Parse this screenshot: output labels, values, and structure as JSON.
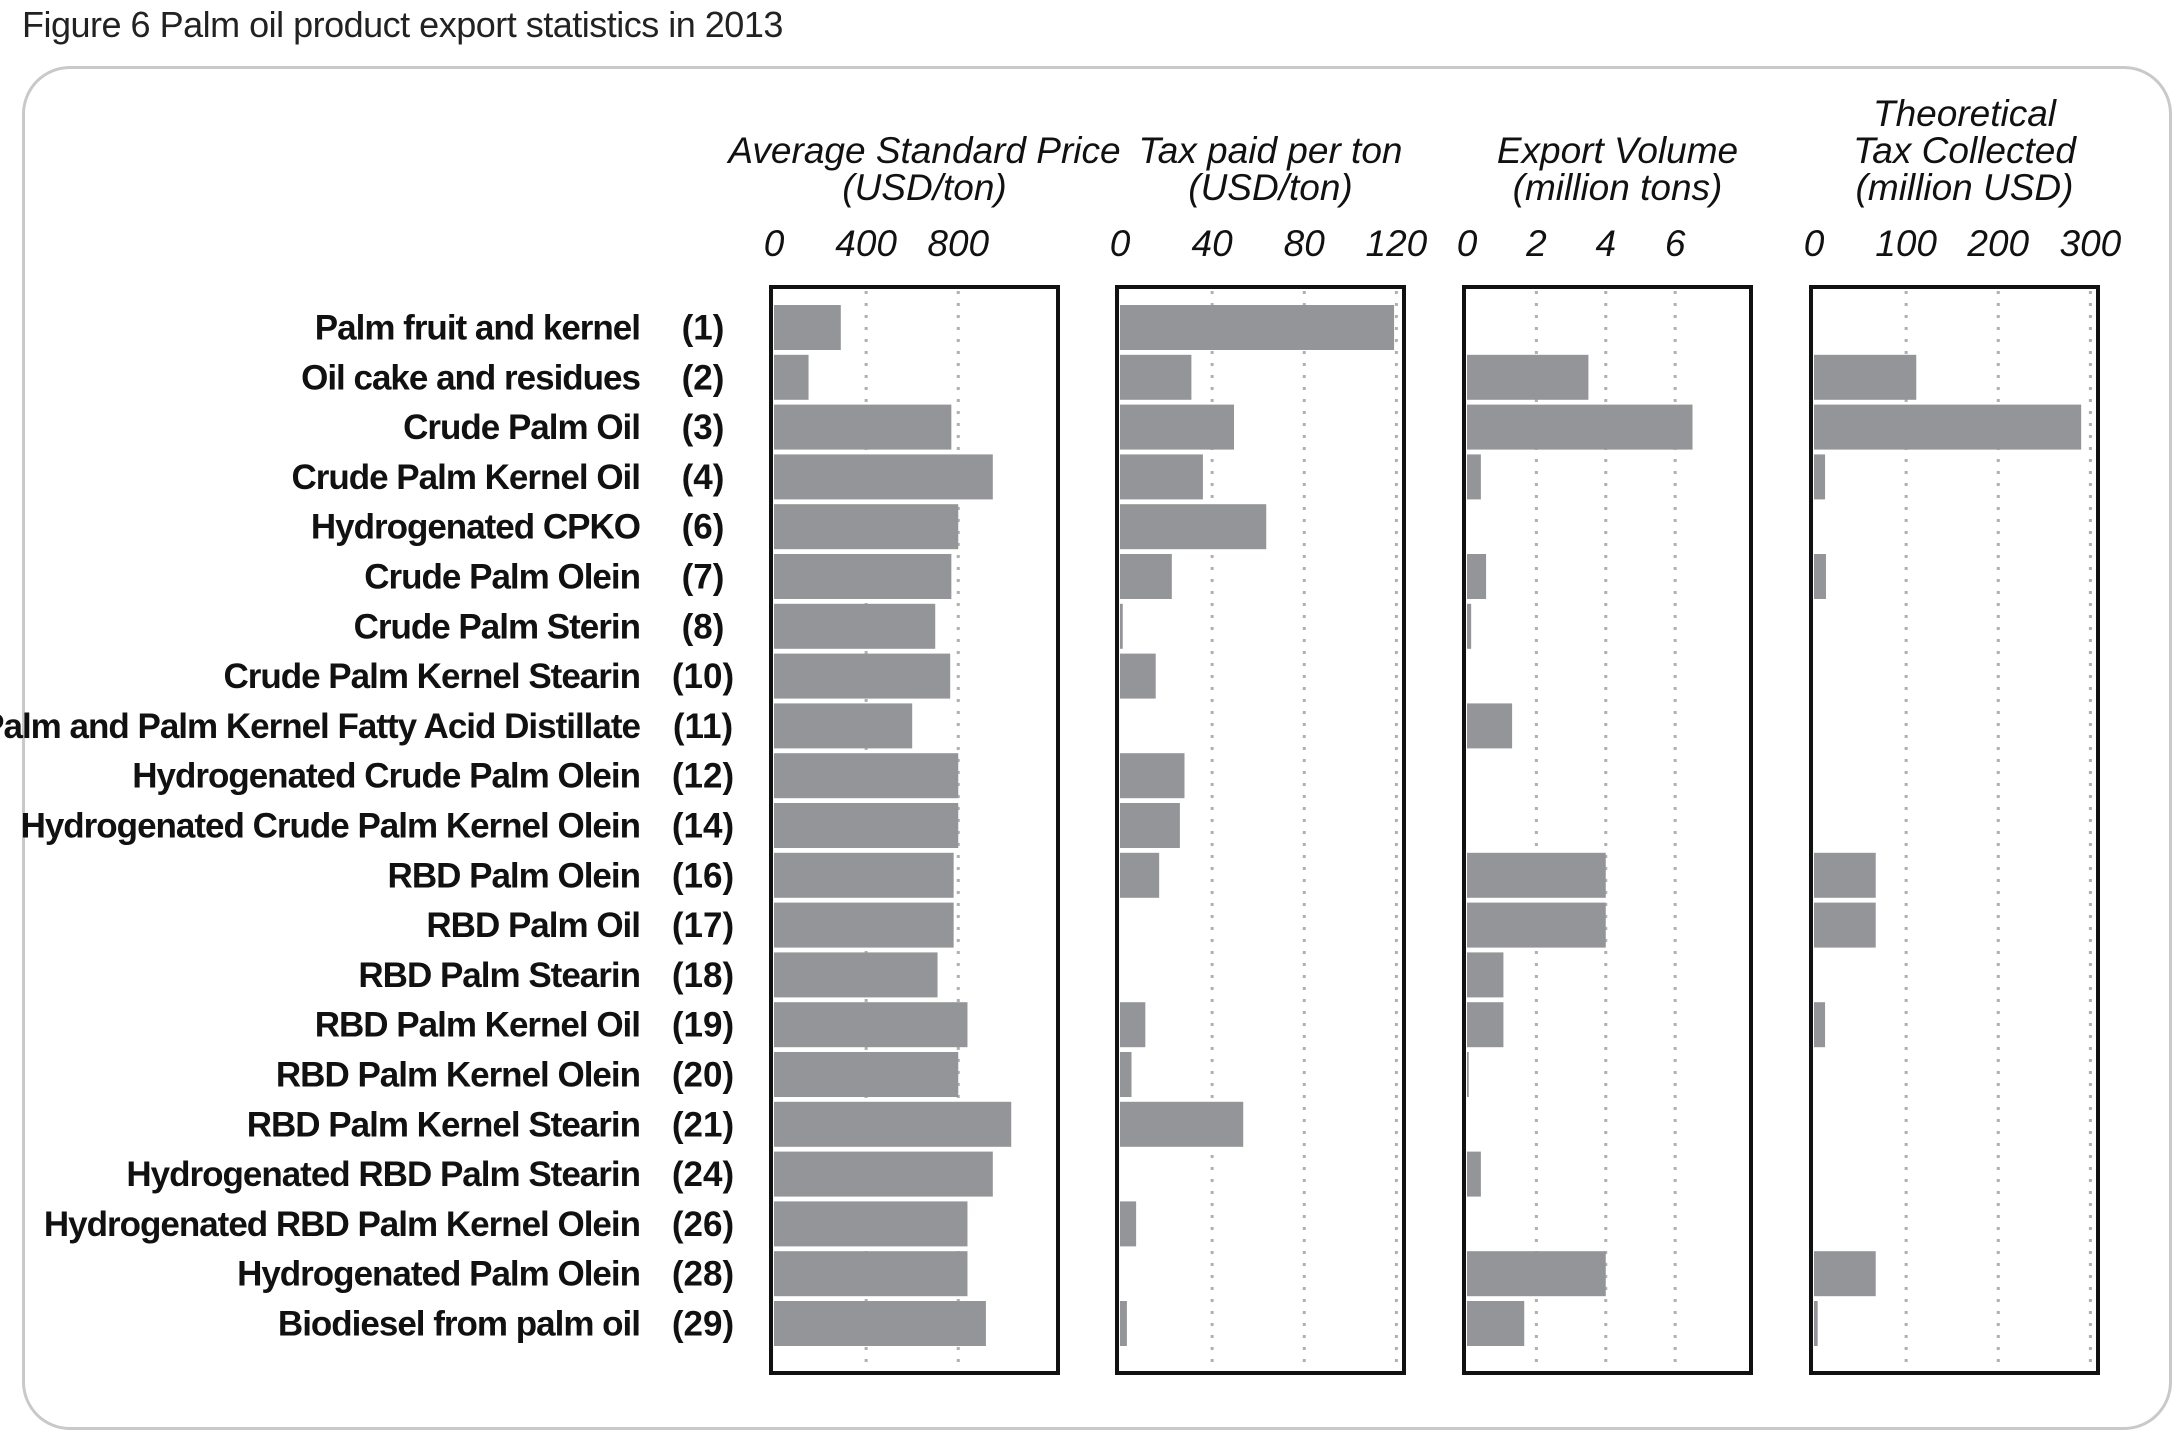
{
  "figure": {
    "caption": "Figure 6 Palm oil product export statistics in 2013"
  },
  "chart_data": {
    "type": "bar",
    "orientation": "horizontal",
    "categories": [
      "Palm fruit and kernel",
      "Oil cake and residues",
      "Crude Palm Oil",
      "Crude Palm Kernel Oil",
      "Hydrogenated  CPKO",
      "Crude Palm Olein",
      "Crude Palm Sterin",
      "Crude Palm Kernel Stearin",
      "Palm and Palm Kernel Fatty Acid Distillate",
      "Hydrogenated Crude Palm Olein",
      "Hydrogenated Crude Palm Kernel Olein",
      "RBD Palm Olein",
      "RBD Palm Oil",
      "RBD Palm Stearin",
      "RBD Palm Kernel Oil",
      "RBD Palm Kernel Olein",
      "RBD Palm Kernel Stearin",
      "Hydrogenated RBD Palm Stearin",
      "Hydrogenated RBD Palm Kernel Olein",
      "Hydrogenated Palm Olein",
      "Biodiesel from palm oil"
    ],
    "category_codes": [
      "(1)",
      "(2)",
      "(3)",
      "(4)",
      "(6)",
      "(7)",
      "(8)",
      "(10)",
      "(11)",
      "(12)",
      "(14)",
      "(16)",
      "(17)",
      "(18)",
      "(19)",
      "(20)",
      "(21)",
      "(24)",
      "(26)",
      "(28)",
      "(29)"
    ],
    "panels": [
      {
        "title_lines": [
          "Average Standard Price",
          "(USD/ton)"
        ],
        "ticks": [
          "0",
          "400",
          "800"
        ],
        "tick_values": [
          0,
          400,
          800
        ],
        "xlim": [
          0,
          1220
        ],
        "values": [
          290,
          150,
          770,
          950,
          800,
          770,
          700,
          765,
          600,
          800,
          800,
          780,
          780,
          710,
          840,
          800,
          1030,
          950,
          840,
          840,
          920
        ]
      },
      {
        "title_lines": [
          "Tax paid per ton",
          "(USD/ton)"
        ],
        "ticks": [
          "0",
          "40",
          "80",
          "120"
        ],
        "tick_values": [
          0,
          40,
          80,
          120
        ],
        "xlim": [
          0,
          122
        ],
        "values": [
          119,
          31,
          49.5,
          36,
          63.5,
          22.5,
          1.2,
          15.5,
          0,
          28,
          26,
          17,
          0,
          0,
          11,
          5,
          53.5,
          0,
          7,
          0,
          3
        ]
      },
      {
        "title_lines": [
          "Export Volume",
          "(million tons)"
        ],
        "ticks": [
          "0",
          "2",
          "4",
          "6"
        ],
        "tick_values": [
          0,
          2,
          4,
          6
        ],
        "xlim": [
          0,
          8.1
        ],
        "values": [
          0,
          3.5,
          6.5,
          0.4,
          0,
          0.55,
          0.12,
          0,
          1.3,
          0,
          0,
          4.0,
          4.0,
          1.05,
          1.05,
          0.05,
          0,
          0.4,
          0,
          4.0,
          1.65
        ]
      },
      {
        "title_lines": [
          "Theoretical",
          "Tax Collected",
          "(million USD)"
        ],
        "ticks": [
          "0",
          "100",
          "200",
          "300"
        ],
        "tick_values": [
          0,
          100,
          200,
          300
        ],
        "xlim": [
          0,
          305
        ],
        "values": [
          0,
          111,
          290,
          12,
          0,
          13,
          0,
          0,
          0,
          0,
          0,
          67,
          67,
          0,
          12,
          0,
          0,
          0,
          0,
          67,
          4
        ]
      }
    ]
  }
}
